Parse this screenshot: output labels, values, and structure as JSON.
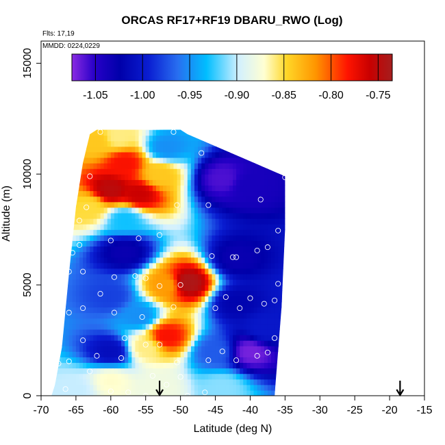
{
  "chart_data": {
    "type": "heatmap",
    "title": "ORCAS RF17+RF19 DBARU_RWO (Log)",
    "flights_note": "Flts: 17,19",
    "date_note": "MMDD: 0224,0229",
    "xlabel": "Latitude (deg N)",
    "ylabel": "Altitude (m)",
    "xlim": [
      -70,
      -15
    ],
    "ylim": [
      0,
      16000
    ],
    "x_ticks": [
      -70,
      -65,
      -60,
      -55,
      -50,
      -45,
      -40,
      -35,
      -30,
      -25,
      -20,
      -15
    ],
    "y_ticks": [
      0,
      5000,
      10000,
      15000
    ],
    "colorbar": {
      "ticks": [
        -1.05,
        -1.0,
        -0.95,
        -0.9,
        -0.85,
        -0.8,
        -0.75
      ],
      "tick_labels": [
        "-1.05",
        "-1.00",
        "-0.95",
        "-0.90",
        "-0.85",
        "-0.80",
        "-0.75"
      ],
      "range": [
        -1.075,
        -0.735
      ]
    },
    "arrows_at_latitude": [
      -53,
      -18.5
    ],
    "max_altitude_profile": [
      [
        -68.5,
        0
      ],
      [
        -68,
        500
      ],
      [
        -67,
        2200
      ],
      [
        -66,
        5500
      ],
      [
        -65,
        8500
      ],
      [
        -64,
        10500
      ],
      [
        -63,
        11800
      ],
      [
        -62,
        12000
      ],
      [
        -50,
        12000
      ],
      [
        -49,
        11800
      ],
      [
        -35,
        9900
      ],
      [
        -35,
        7500
      ],
      [
        -35.5,
        4000
      ],
      [
        -36.5,
        0
      ]
    ],
    "blobs": [
      {
        "lat": -58,
        "alt": 10500,
        "value": -0.78
      },
      {
        "lat": -60,
        "alt": 9300,
        "value": -0.75
      },
      {
        "lat": -56,
        "alt": 9100,
        "value": -0.76
      },
      {
        "lat": -62,
        "alt": 11500,
        "value": -0.84
      },
      {
        "lat": -59,
        "alt": 11700,
        "value": -0.86
      },
      {
        "lat": -63,
        "alt": 8500,
        "value": -0.85
      },
      {
        "lat": -53,
        "alt": 10000,
        "value": -0.84
      },
      {
        "lat": -49,
        "alt": 5100,
        "value": -0.74
      },
      {
        "lat": -52,
        "alt": 5000,
        "value": -0.82
      },
      {
        "lat": -52,
        "alt": 2700,
        "value": -0.78
      },
      {
        "lat": -55,
        "alt": 2200,
        "value": -0.86
      },
      {
        "lat": -60,
        "alt": 700,
        "value": -0.87
      },
      {
        "lat": -53,
        "alt": 400,
        "value": -0.88
      },
      {
        "lat": -44,
        "alt": 400,
        "value": -0.91
      },
      {
        "lat": -65,
        "alt": 300,
        "value": -0.9
      },
      {
        "lat": -52,
        "alt": 11200,
        "value": -0.95
      },
      {
        "lat": -58,
        "alt": 8000,
        "value": -0.93
      },
      {
        "lat": -56,
        "alt": 3600,
        "value": -0.95
      },
      {
        "lat": -45,
        "alt": 2000,
        "value": -0.97
      },
      {
        "lat": -60,
        "alt": 4500,
        "value": -0.98
      },
      {
        "lat": -40,
        "alt": 2000,
        "value": -1.07
      },
      {
        "lat": -44,
        "alt": 9800,
        "value": -1.06
      },
      {
        "lat": -40,
        "alt": 9500,
        "value": -1.04
      },
      {
        "lat": -58,
        "alt": 6500,
        "value": -1.03
      },
      {
        "lat": -42,
        "alt": 6200,
        "value": -1.03
      },
      {
        "lat": -42,
        "alt": 4200,
        "value": -1.02
      },
      {
        "lat": -60,
        "alt": 2000,
        "value": -1.01
      },
      {
        "lat": -38,
        "alt": 3000,
        "value": -1.0
      }
    ],
    "observations": [
      [
        -61.5,
        11900
      ],
      [
        -51,
        11900
      ],
      [
        -47,
        10950
      ],
      [
        -35,
        9850
      ],
      [
        -63,
        9900
      ],
      [
        -38.5,
        8850
      ],
      [
        -50.5,
        8600
      ],
      [
        -46,
        8600
      ],
      [
        -63.5,
        8500
      ],
      [
        -64.5,
        7900
      ],
      [
        -36,
        7450
      ],
      [
        -53,
        7250
      ],
      [
        -56,
        7100
      ],
      [
        -60,
        7000
      ],
      [
        -64.5,
        6800
      ],
      [
        -37.5,
        6700
      ],
      [
        -39,
        6550
      ],
      [
        -65.5,
        6450
      ],
      [
        -42.5,
        6250
      ],
      [
        -42,
        6250
      ],
      [
        -45.5,
        6300
      ],
      [
        -66,
        5600
      ],
      [
        -64,
        5600
      ],
      [
        -59.5,
        5350
      ],
      [
        -56.5,
        5400
      ],
      [
        -55,
        5300
      ],
      [
        -53,
        4950
      ],
      [
        -50,
        5000
      ],
      [
        -36,
        5050
      ],
      [
        -61.5,
        4600
      ],
      [
        -43.5,
        4450
      ],
      [
        -40,
        4400
      ],
      [
        -67,
        3850
      ],
      [
        -66,
        3750
      ],
      [
        -64,
        3950
      ],
      [
        -59.5,
        3750
      ],
      [
        -51,
        4000
      ],
      [
        -45,
        3950
      ],
      [
        -41.5,
        3950
      ],
      [
        -38,
        4150
      ],
      [
        -36.5,
        4300
      ],
      [
        -55.5,
        3550
      ],
      [
        -58,
        2600
      ],
      [
        -64,
        2500
      ],
      [
        -67.5,
        2500
      ],
      [
        -53,
        2300
      ],
      [
        -55,
        2300
      ],
      [
        -36.5,
        2600
      ],
      [
        -37.5,
        1950
      ],
      [
        -44,
        2000
      ],
      [
        -46,
        1600
      ],
      [
        -42,
        1600
      ],
      [
        -39,
        1800
      ],
      [
        -62,
        1800
      ],
      [
        -66,
        1550
      ],
      [
        -58.5,
        1700
      ],
      [
        -67.5,
        1450
      ],
      [
        -50.5,
        1500
      ],
      [
        -68.5,
        900
      ],
      [
        -63,
        1100
      ],
      [
        -54,
        900
      ],
      [
        -50,
        850
      ],
      [
        -55,
        0
      ],
      [
        -52,
        500
      ],
      [
        -66.5,
        300
      ],
      [
        -60,
        200
      ],
      [
        -57.5,
        150
      ],
      [
        -46.5,
        150
      ],
      [
        -49,
        0
      ]
    ]
  }
}
